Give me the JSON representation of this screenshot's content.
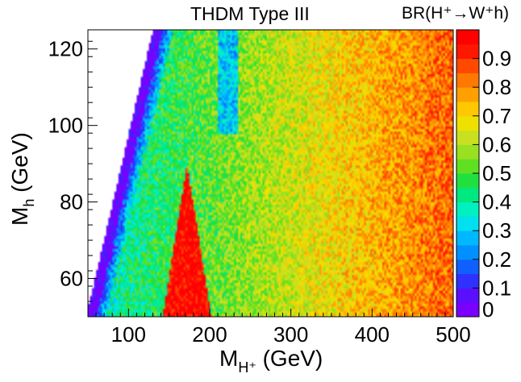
{
  "chart_data": {
    "type": "heatmap",
    "title": "THDM Type III",
    "xlabel": "M",
    "xlabel_sub": "H⁺",
    "xlabel_unit": " (GeV)",
    "ylabel": "M",
    "ylabel_sub": "h",
    "ylabel_unit": " (GeV)",
    "zlabel": "BR(H⁺→W⁺h)",
    "xlim": [
      50,
      500
    ],
    "ylim": [
      50,
      125
    ],
    "zlim": [
      0,
      1
    ],
    "x_ticks": [
      "100",
      "200",
      "300",
      "400",
      "500"
    ],
    "x_tick_values": [
      100,
      200,
      300,
      400,
      500
    ],
    "y_ticks": [
      "60",
      "80",
      "100",
      "120"
    ],
    "y_tick_values": [
      60,
      80,
      100,
      120
    ],
    "z_ticks": [
      "0",
      "0.1",
      "0.2",
      "0.3",
      "0.4",
      "0.5",
      "0.6",
      "0.7",
      "0.8",
      "0.9"
    ],
    "z_tick_values": [
      0,
      0.1,
      0.2,
      0.3,
      0.4,
      0.5,
      0.6,
      0.7,
      0.8,
      0.9
    ],
    "palette": [
      "#7a00ff",
      "#5a10ff",
      "#3030ff",
      "#1060ff",
      "#0090ff",
      "#00b8ff",
      "#00e0f0",
      "#00f0c0",
      "#00e880",
      "#20e040",
      "#60e020",
      "#98e020",
      "#c8e020",
      "#f0e000",
      "#ffc800",
      "#ffa000",
      "#ff7800",
      "#ff4800",
      "#ff1800",
      "#ff0000"
    ],
    "features": {
      "kinematic_edge": [
        [
          50,
          52
        ],
        [
          130,
          125
        ]
      ],
      "low_band_width_gev": 40,
      "red_peak_center_gev": 172,
      "red_peak_top_gev": 90
    }
  }
}
